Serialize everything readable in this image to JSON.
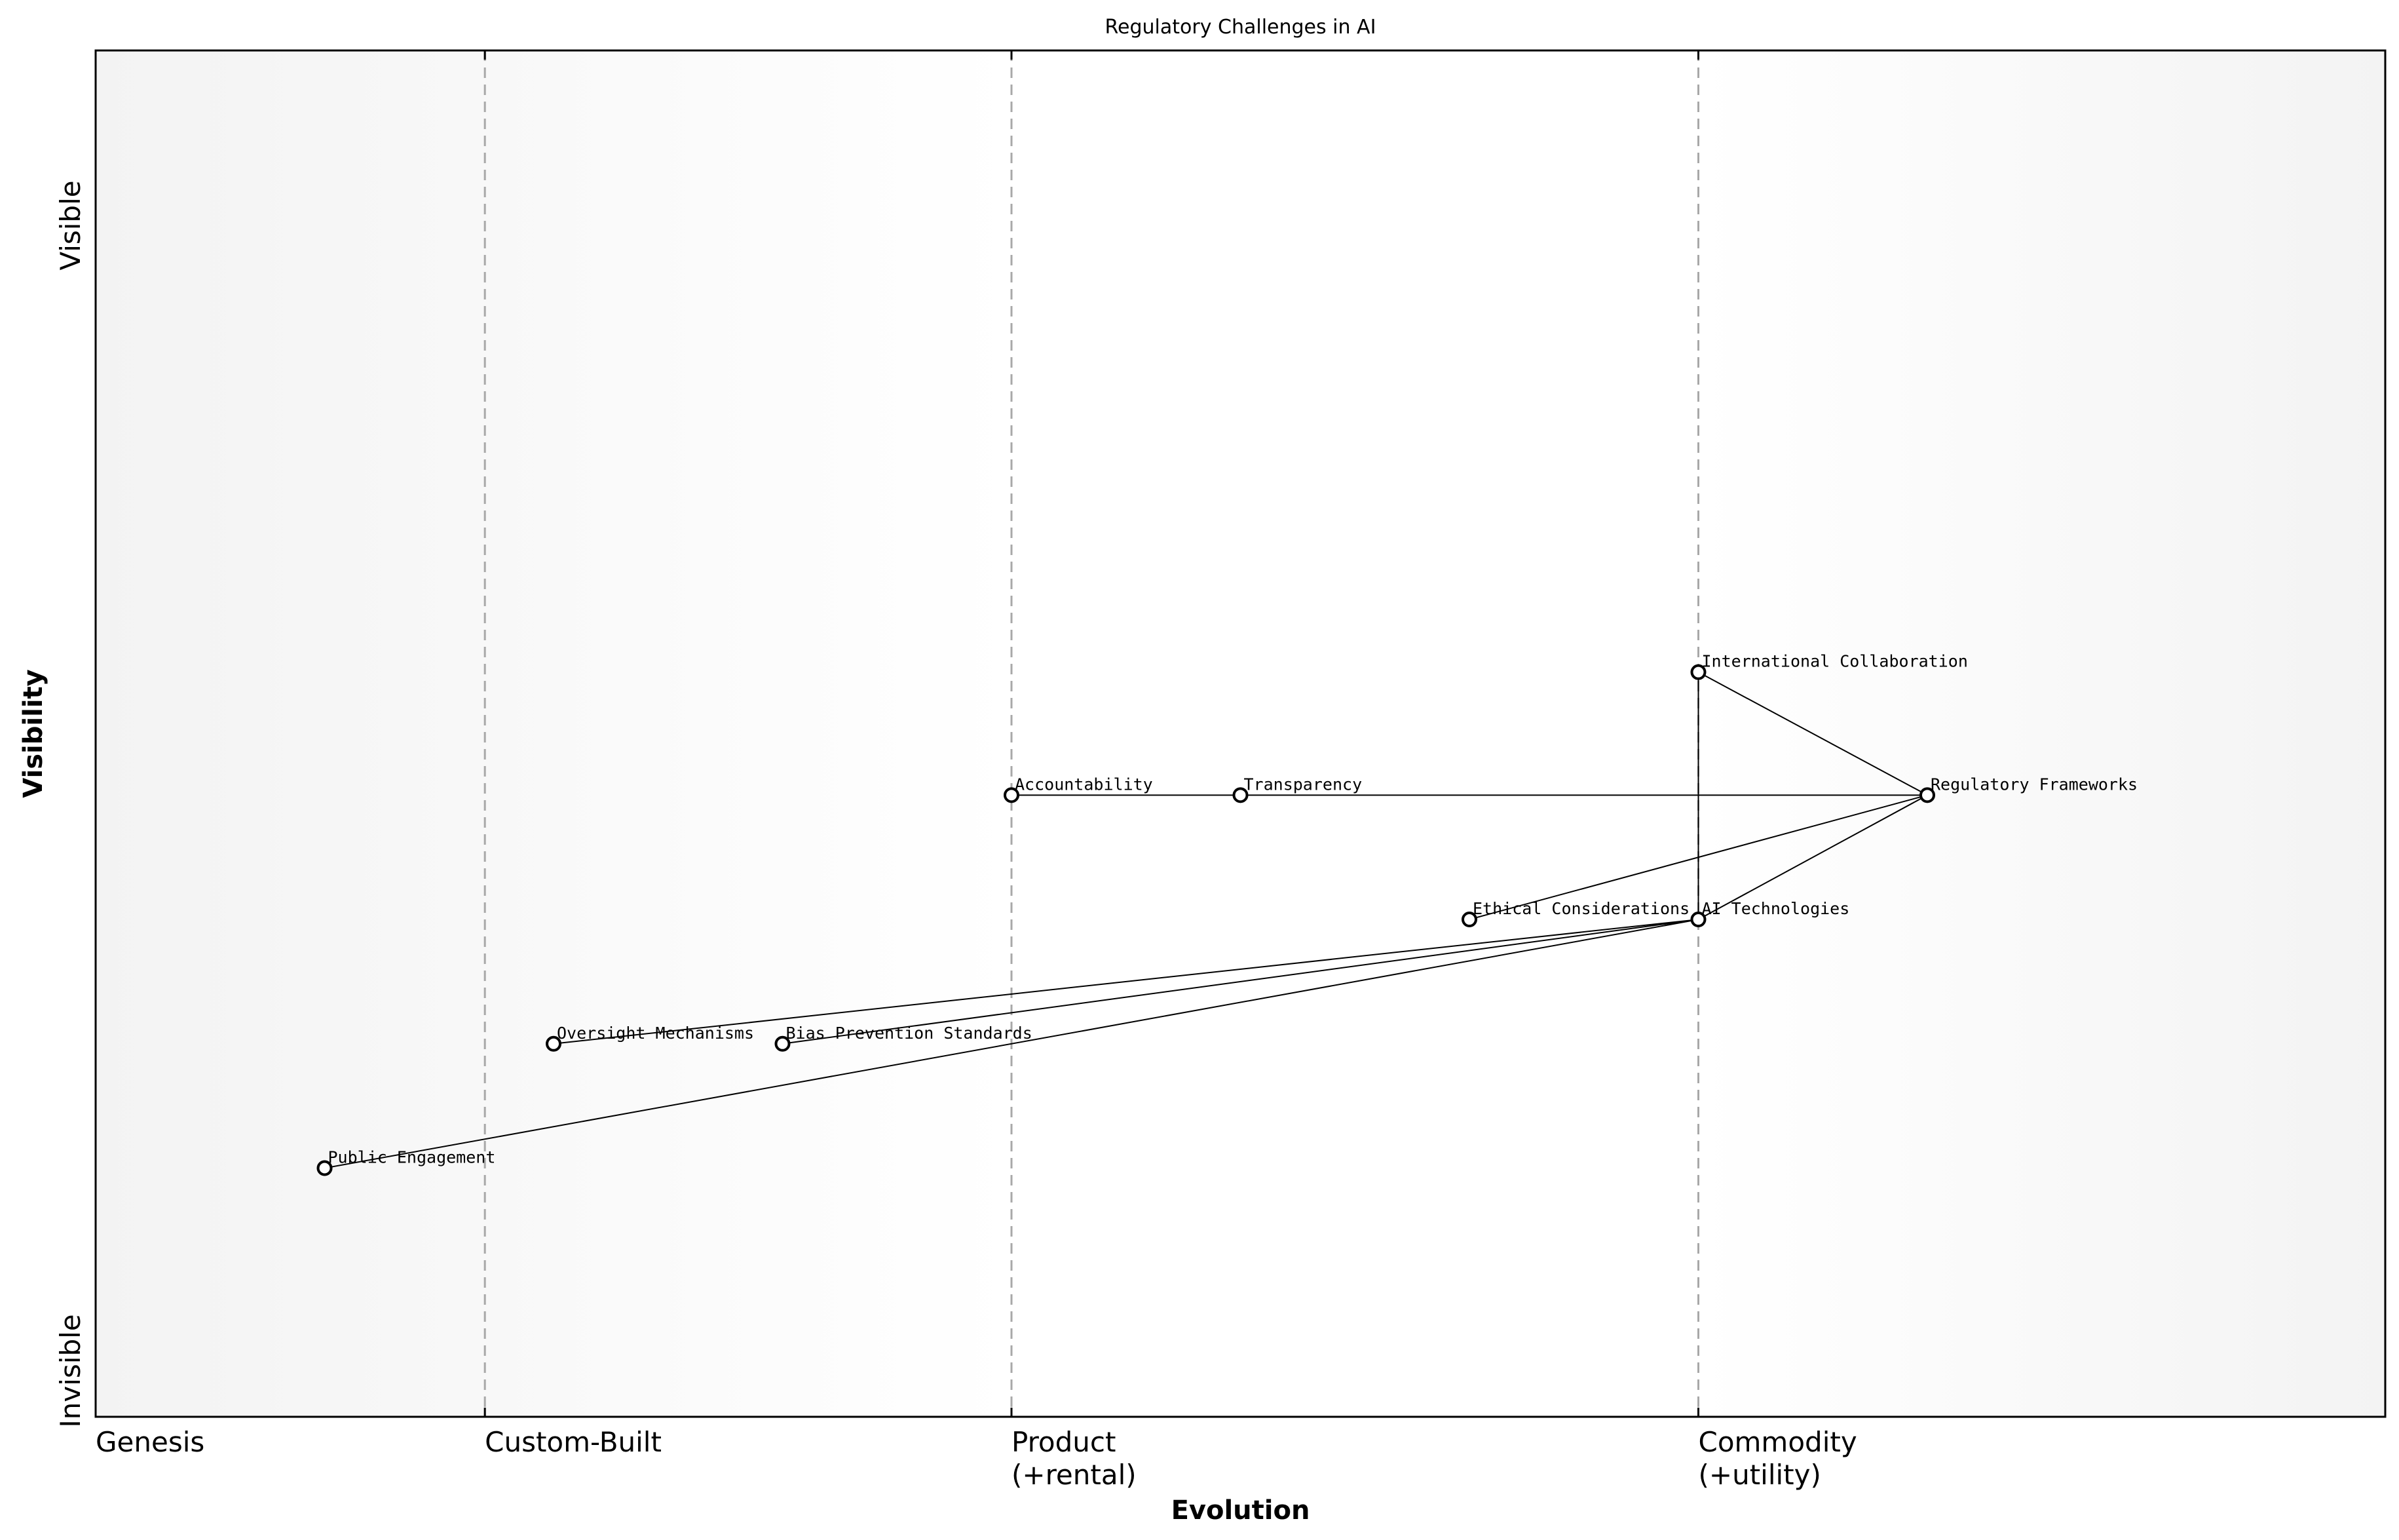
{
  "chart_data": {
    "type": "wardley-map",
    "title": "Regulatory Challenges in AI",
    "xlabel": "Evolution",
    "ylabel": "Visibility",
    "xlim": [
      0,
      1
    ],
    "ylim": [
      0,
      1
    ],
    "stages": [
      {
        "x": 0.0,
        "label": "Genesis"
      },
      {
        "x": 0.17,
        "label": "Custom-Built"
      },
      {
        "x": 0.4,
        "label": "Product\n(+rental)"
      },
      {
        "x": 0.7,
        "label": "Commodity\n(+utility)"
      }
    ],
    "visibility_labels": {
      "high": "Visible",
      "low": "Invisible"
    },
    "nodes": [
      {
        "id": "intl",
        "label": "International Collaboration",
        "x": 0.7,
        "y": 0.545
      },
      {
        "id": "accountability",
        "label": "Accountability",
        "x": 0.4,
        "y": 0.455
      },
      {
        "id": "transparency",
        "label": "Transparency",
        "x": 0.5,
        "y": 0.455
      },
      {
        "id": "regulatory",
        "label": "Regulatory Frameworks",
        "x": 0.8,
        "y": 0.455
      },
      {
        "id": "ethical",
        "label": "Ethical Considerations",
        "x": 0.6,
        "y": 0.364
      },
      {
        "id": "ai",
        "label": "AI Technologies",
        "x": 0.7,
        "y": 0.364
      },
      {
        "id": "oversight",
        "label": "Oversight Mechanisms",
        "x": 0.2,
        "y": 0.273
      },
      {
        "id": "bias",
        "label": "Bias Prevention Standards",
        "x": 0.3,
        "y": 0.273
      },
      {
        "id": "public",
        "label": "Public Engagement",
        "x": 0.1,
        "y": 0.182
      }
    ],
    "edges": [
      [
        "intl",
        "regulatory"
      ],
      [
        "intl",
        "ai"
      ],
      [
        "accountability",
        "regulatory"
      ],
      [
        "ethical",
        "regulatory"
      ],
      [
        "ai",
        "regulatory"
      ],
      [
        "oversight",
        "ai"
      ],
      [
        "bias",
        "ai"
      ],
      [
        "public",
        "ai"
      ]
    ]
  }
}
